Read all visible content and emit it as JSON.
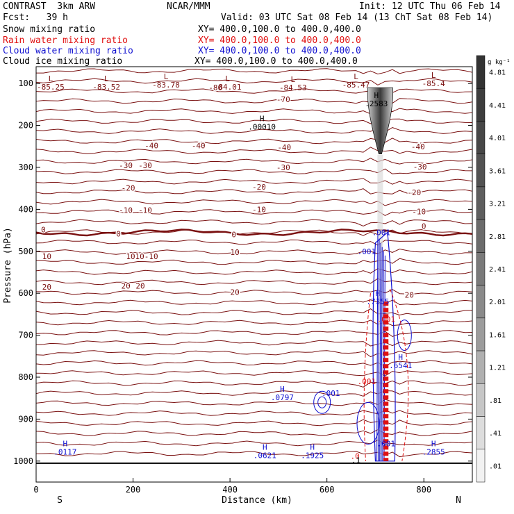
{
  "header": {
    "model": "CONTRAST  3km ARW",
    "center": "NCAR/MMM",
    "init": "Init: 12 UTC Thu 06 Feb 14",
    "fcst": "Fcst:   39 h",
    "valid": "Valid: 03 UTC Sat 08 Feb 14 (13 ChT Sat 08 Feb 14)",
    "fields": [
      {
        "name": "Snow mixing ratio",
        "xy": "XY= 400.0,100.0 to 400.0,400.0",
        "color": "#000000"
      },
      {
        "name": "Rain water mixing ratio",
        "xy": "XY= 400.0,100.0 to 400.0,400.0",
        "color": "#e01010"
      },
      {
        "name": "Cloud water mixing ratio",
        "xy": "XY= 400.0,100.0 to 400.0,400.0",
        "color": "#1010d0"
      },
      {
        "name": "Cloud ice mixing ratio",
        "xy": "XY= 400.0,100.0 to 400.0,400.0",
        "color": "#000000"
      }
    ]
  },
  "colors": {
    "temperature": "#7a1010",
    "cloud_water": "#1010d0",
    "rain": "#e01010",
    "snow_shade": "#555555"
  },
  "chart_data": {
    "type": "heatmap",
    "xlabel": "Distance (km)",
    "ylabel": "Pressure (hPa)",
    "xlim": [
      0,
      900
    ],
    "ylim": [
      1050,
      60
    ],
    "x_ticks": [
      0,
      200,
      400,
      600,
      800
    ],
    "y_ticks": [
      100,
      200,
      300,
      400,
      500,
      600,
      700,
      800,
      900,
      1000
    ],
    "endpoints": {
      "left": "S",
      "right": "N"
    },
    "colorbar": {
      "unit": "g kg⁻¹",
      "labels": [
        "4.81",
        "4.41",
        "4.01",
        "3.61",
        "3.21",
        "2.81",
        "2.41",
        "2.01",
        "1.61",
        "1.21",
        ".81",
        ".41",
        ".01"
      ],
      "colors": [
        "#333333",
        "#3d3d3d",
        "#474747",
        "#525252",
        "#5e5e5e",
        "#6b6b6b",
        "#7a7a7a",
        "#8a8a8a",
        "#9c9c9c",
        "#b0b0b0",
        "#c6c6c6",
        "#dddddd",
        "#f2f2f2"
      ]
    },
    "isotherm_labels": [
      {
        "text": "-80",
        "x": 370,
        "p": 110
      },
      {
        "text": "-70",
        "x": 510,
        "p": 138
      },
      {
        "text": "-40",
        "x": 238,
        "p": 248
      },
      {
        "text": "-40",
        "x": 335,
        "p": 248
      },
      {
        "text": "-40",
        "x": 512,
        "p": 252
      },
      {
        "text": "-40",
        "x": 788,
        "p": 250
      },
      {
        "text": "-30",
        "x": 185,
        "p": 295
      },
      {
        "text": "-30",
        "x": 225,
        "p": 295
      },
      {
        "text": "-30",
        "x": 510,
        "p": 300
      },
      {
        "text": "-30",
        "x": 792,
        "p": 298
      },
      {
        "text": "-20",
        "x": 190,
        "p": 349
      },
      {
        "text": "-20",
        "x": 460,
        "p": 346
      },
      {
        "text": "-20",
        "x": 780,
        "p": 360
      },
      {
        "text": "-10",
        "x": 185,
        "p": 402
      },
      {
        "text": "-10",
        "x": 225,
        "p": 402
      },
      {
        "text": "-10",
        "x": 460,
        "p": 400
      },
      {
        "text": "-10",
        "x": 790,
        "p": 405
      },
      {
        "text": "0",
        "x": 15,
        "p": 448
      },
      {
        "text": "0",
        "x": 170,
        "p": 458
      },
      {
        "text": "0",
        "x": 408,
        "p": 460
      },
      {
        "text": "0",
        "x": 800,
        "p": 440
      },
      {
        "text": "10",
        "x": 22,
        "p": 512
      },
      {
        "text": "10",
        "x": 195,
        "p": 512
      },
      {
        "text": "10-10",
        "x": 228,
        "p": 512
      },
      {
        "text": "10",
        "x": 410,
        "p": 502
      },
      {
        "text": "20",
        "x": 22,
        "p": 585
      },
      {
        "text": "20",
        "x": 185,
        "p": 582
      },
      {
        "text": "20",
        "x": 215,
        "p": 582
      },
      {
        "text": "20",
        "x": 410,
        "p": 597
      },
      {
        "text": "20",
        "x": 770,
        "p": 604
      }
    ],
    "temperature_minima": [
      {
        "mark": "L",
        "value": "-85.25",
        "x": 30,
        "p": 88
      },
      {
        "mark": "L",
        "value": "-83.52",
        "x": 145,
        "p": 88
      },
      {
        "mark": "L",
        "value": "-83.78",
        "x": 268,
        "p": 83
      },
      {
        "mark": "L",
        "value": "-84.01",
        "x": 395,
        "p": 88
      },
      {
        "mark": "L",
        "value": "-84.53",
        "x": 530,
        "p": 90
      },
      {
        "mark": "L",
        "value": "-85.47",
        "x": 660,
        "p": 83
      },
      {
        "mark": "L",
        "value": "-85.4",
        "x": 820,
        "p": 80
      }
    ],
    "mixing_ratio_maxima": [
      {
        "field": "Snow mixing ratio",
        "mark": "H",
        "value": ".00010",
        "x": 466,
        "p": 183
      },
      {
        "field": "Snow mixing ratio",
        "mark": "H",
        "value": ".2583",
        "x": 702,
        "p": 128
      },
      {
        "field": "Cloud water mixing ratio",
        "mark": "H",
        "value": ".0797",
        "x": 508,
        "p": 828
      },
      {
        "field": "Cloud water mixing ratio",
        "mark": "H",
        "value": ".0117",
        "x": 60,
        "p": 958
      },
      {
        "field": "Cloud water mixing ratio",
        "mark": "H",
        "value": ".0621",
        "x": 472,
        "p": 966
      },
      {
        "field": "Cloud water mixing ratio",
        "mark": "H",
        "value": ".1925",
        "x": 570,
        "p": 966
      },
      {
        "field": "Cloud water mixing ratio",
        "mark": "H",
        "value": ".2855",
        "x": 820,
        "p": 958
      },
      {
        "field": "Cloud water mixing ratio",
        "mark": "H",
        "value": ".7355",
        "x": 705,
        "p": 600
      },
      {
        "field": "Cloud water mixing ratio",
        "mark": "H",
        "value": ".6541",
        "x": 752,
        "p": 752
      }
    ],
    "contour_labels": [
      {
        "text": ".001",
        "x": 712,
        "p": 455,
        "color": "blue"
      },
      {
        "text": ".001",
        "x": 682,
        "p": 500,
        "color": "blue"
      },
      {
        "text": ".001",
        "x": 608,
        "p": 838,
        "color": "blue"
      },
      {
        "text": ".001",
        "x": 722,
        "p": 958,
        "color": "blue"
      },
      {
        "text": ".001",
        "x": 682,
        "p": 810,
        "color": "red"
      },
      {
        "text": ".001",
        "x": 722,
        "p": 662,
        "color": "red"
      },
      {
        "text": ".0",
        "x": 658,
        "p": 988,
        "color": "red"
      },
      {
        "text": ".1",
        "x": 660,
        "p": 998,
        "color": "black"
      }
    ]
  }
}
